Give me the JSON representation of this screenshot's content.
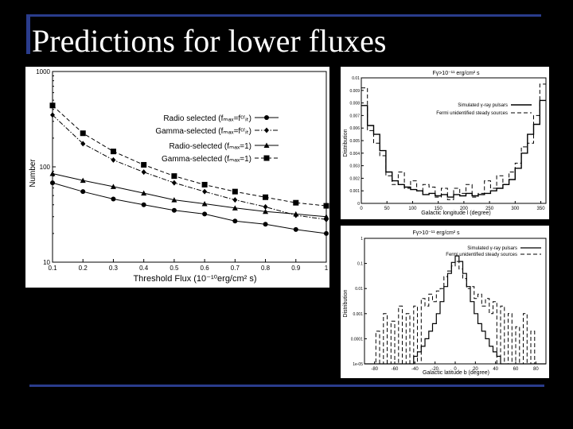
{
  "slide": {
    "title": "Predictions for lower fluxes"
  },
  "chart_data": [
    {
      "type": "line",
      "xlabel": "Threshold Flux (10⁻¹⁰erg/cm² s)",
      "ylabel": "Number",
      "y_scale": "log",
      "xlim": [
        0.1,
        1
      ],
      "ylim": [
        10,
        1000
      ],
      "x_ticks": [
        "0.1",
        "0.2",
        "0.3",
        "0.4",
        "0.5",
        "0.6",
        "0.7",
        "0.8",
        "0.9",
        "1"
      ],
      "y_ticks": [
        "10",
        "100",
        "1000"
      ],
      "legend_position": "top-right",
      "x": [
        0.1,
        0.2,
        0.3,
        0.4,
        0.5,
        0.6,
        0.7,
        0.8,
        0.9,
        1.0
      ],
      "series": [
        {
          "name": "Radio selected (fₘₐₓ=fᶜʳᵢₜ)",
          "marker": "circle",
          "dash": "solid",
          "values": [
            68,
            55,
            46,
            40,
            35,
            32,
            27,
            25,
            22,
            20
          ]
        },
        {
          "name": "Gamma-selected (fₘₐₓ=fᶜʳᵢₜ)",
          "marker": "diamond",
          "dash": "dashdot",
          "values": [
            350,
            175,
            118,
            88,
            68,
            55,
            45,
            38,
            31,
            28
          ]
        },
        {
          "name": "Radio-selected (fₘₐₓ=1)",
          "marker": "triangle",
          "dash": "solid",
          "values": [
            85,
            72,
            62,
            53,
            45,
            41,
            37,
            34,
            32,
            30
          ]
        },
        {
          "name": "Gamma-selected (fₘₐₓ=1)",
          "marker": "square",
          "dash": "dashed",
          "values": [
            440,
            225,
            145,
            105,
            80,
            65,
            55,
            48,
            42,
            39
          ]
        }
      ]
    },
    {
      "type": "line",
      "title": "Fγ>10⁻¹¹ erg/cm² s",
      "xlabel": "Galactic longitude l (degree)",
      "ylabel": "Distribution",
      "xlim": [
        0,
        360
      ],
      "ylim": [
        0,
        0.01
      ],
      "x_ticks": [
        "0",
        "50",
        "100",
        "150",
        "200",
        "250",
        "300",
        "350"
      ],
      "y_ticks": [
        "0",
        "0.001",
        "0.002",
        "0.003",
        "0.004",
        "0.005",
        "0.006",
        "0.007",
        "0.008",
        "0.009",
        "0.01"
      ],
      "legend_position": "top-right",
      "series": [
        {
          "name": "Simulated γ-ray pulsars",
          "dash": "solid",
          "values": [
            0.0078,
            0.0062,
            0.0055,
            0.0042,
            0.0025,
            0.0018,
            0.0015,
            0.0013,
            0.0011,
            0.001,
            0.0007,
            0.0008,
            0.0006,
            0.0007,
            0.0005,
            0.0007,
            0.0006,
            0.0008,
            0.0006,
            0.0007,
            0.0008,
            0.001,
            0.0012,
            0.0015,
            0.0019,
            0.0028,
            0.004,
            0.0055,
            0.0063,
            0.0082
          ]
        },
        {
          "name": "Fermi unidentified steady sources",
          "dash": "dashed",
          "values": [
            0.0092,
            0.0058,
            0.0048,
            0.0038,
            0.0022,
            0.0015,
            0.0025,
            0.0012,
            0.0018,
            0.001,
            0.0015,
            0.0013,
            0.0005,
            0.0012,
            0.0003,
            0.0012,
            0.0008,
            0.0015,
            0.0005,
            0.0008,
            0.0018,
            0.0012,
            0.0022,
            0.0015,
            0.0025,
            0.0032,
            0.0045,
            0.0048,
            0.007,
            0.0095
          ]
        }
      ]
    },
    {
      "type": "line",
      "title": "Fγ>10⁻¹¹ erg/cm² s",
      "xlabel": "Galactic latitude b (degree)",
      "ylabel": "Distribution",
      "y_scale": "log",
      "xlim": [
        -90,
        90
      ],
      "ylim": [
        1e-05,
        1
      ],
      "x_ticks": [
        "-80",
        "-60",
        "-40",
        "-20",
        "0",
        "20",
        "40",
        "60",
        "80"
      ],
      "y_ticks": [
        "1e-05",
        "0.0001",
        "0.001",
        "0.01",
        "0.1",
        "1"
      ],
      "legend_position": "top-right",
      "series": [
        {
          "name": "Simulated γ-ray pulsars",
          "dash": "solid",
          "values": [
            1e-05,
            1e-05,
            1e-05,
            1e-05,
            1e-05,
            1e-05,
            1e-05,
            1e-05,
            1e-05,
            1e-05,
            1e-05,
            1e-05,
            1e-05,
            2e-05,
            3e-05,
            5e-05,
            0.0001,
            0.0002,
            0.0004,
            0.001,
            0.003,
            0.012,
            0.04,
            0.11,
            0.2,
            0.12,
            0.04,
            0.012,
            0.003,
            0.001,
            0.0004,
            0.0002,
            0.0001,
            5e-05,
            3e-05,
            2e-05,
            1e-05,
            1e-05,
            1e-05,
            1e-05,
            1e-05,
            1e-05,
            1e-05,
            1e-05,
            1e-05,
            1e-05,
            1e-05,
            1e-05
          ]
        },
        {
          "name": "Fermi unidentified steady sources",
          "dash": "dashed",
          "values": [
            1e-05,
            1e-05,
            1e-05,
            0.0002,
            1e-05,
            0.001,
            1e-05,
            0.0005,
            1e-05,
            0.002,
            1e-05,
            0.001,
            1e-05,
            0.002,
            1e-05,
            0.004,
            0.002,
            0.006,
            0.003,
            0.008,
            0.01,
            0.03,
            0.05,
            0.08,
            0.12,
            0.06,
            0.025,
            0.01,
            0.012,
            0.004,
            0.006,
            0.002,
            0.004,
            0.001,
            0.003,
            1e-05,
            0.002,
            1e-05,
            0.001,
            1e-05,
            0.0003,
            1e-05,
            0.001,
            1e-05,
            0.0002,
            1e-05,
            1e-05,
            1e-05
          ]
        }
      ]
    }
  ]
}
